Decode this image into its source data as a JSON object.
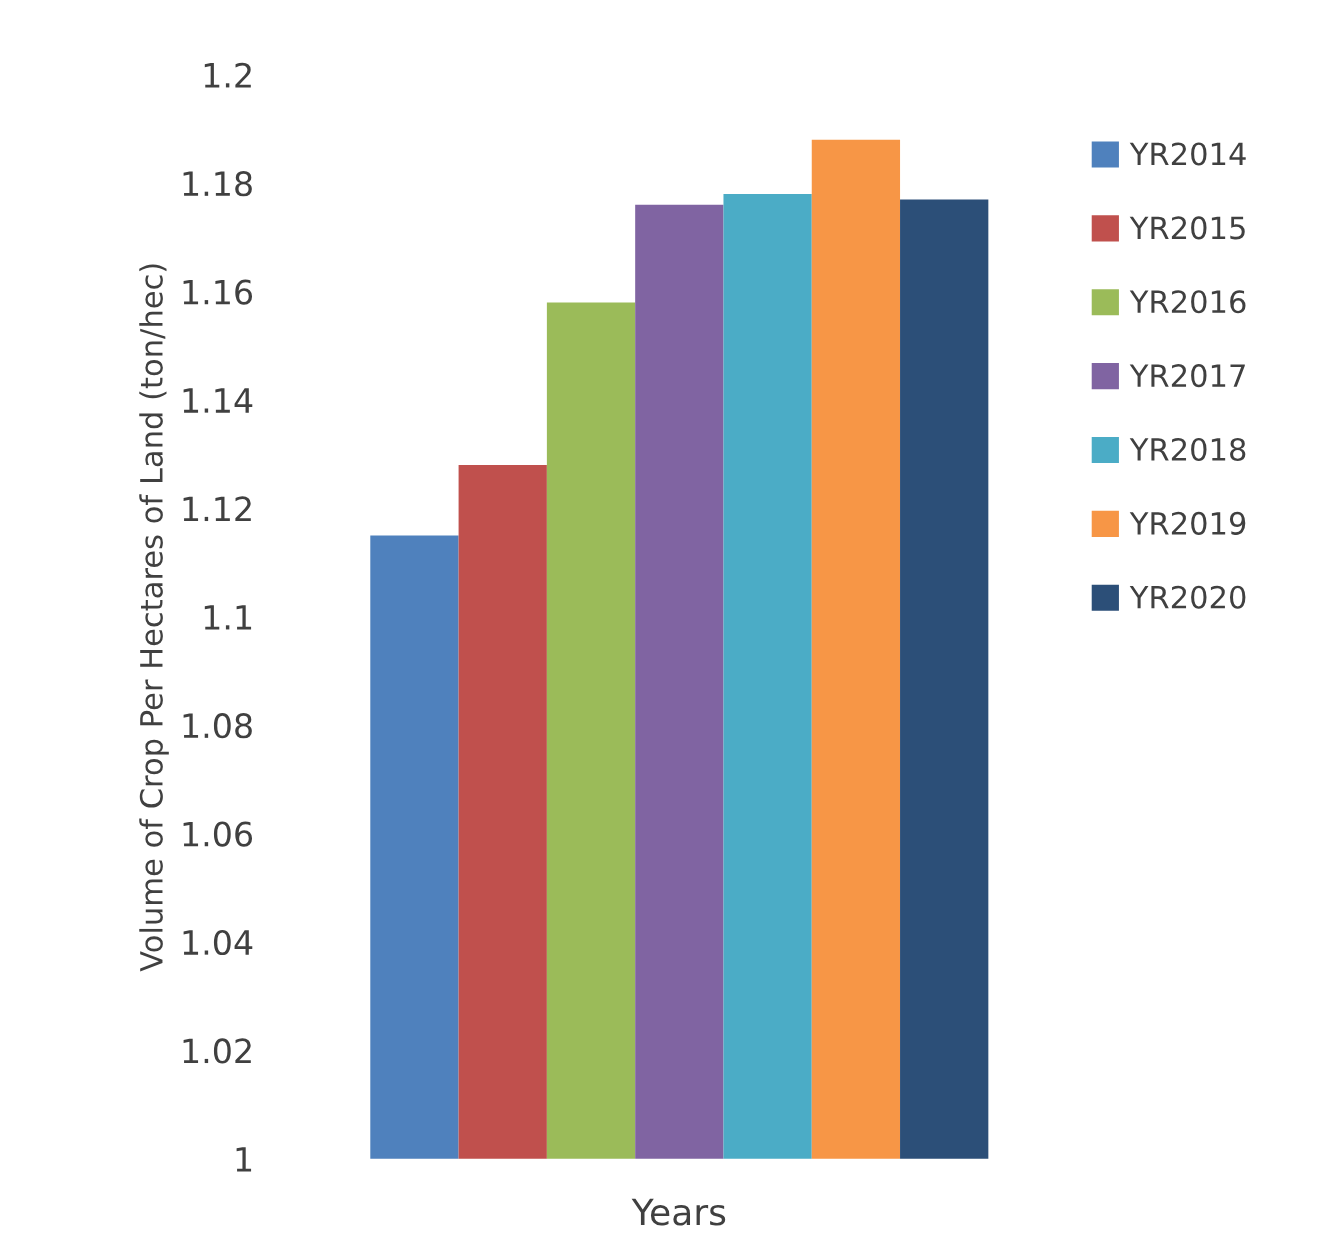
{
  "chart_data": {
    "type": "bar",
    "xlabel": "Years",
    "ylabel": "Volume of Crop Per Hectares of Land (ton/hec)",
    "categories": [
      null
    ],
    "series": [
      {
        "name": "YR2014",
        "color": "#4f81bd",
        "values": [
          1.115
        ]
      },
      {
        "name": "YR2015",
        "color": "#c0504d",
        "values": [
          1.128
        ]
      },
      {
        "name": "YR2016",
        "color": "#9bbb59",
        "values": [
          1.158
        ]
      },
      {
        "name": "YR2017",
        "color": "#8064a2",
        "values": [
          1.176
        ]
      },
      {
        "name": "YR2018",
        "color": "#4bacc6",
        "values": [
          1.178
        ]
      },
      {
        "name": "YR2019",
        "color": "#f79646",
        "values": [
          1.188
        ]
      },
      {
        "name": "YR2020",
        "color": "#2c4f78",
        "values": [
          1.177
        ]
      }
    ],
    "ylim": [
      1,
      1.2
    ],
    "yticks": [
      1,
      1.02,
      1.04,
      1.06,
      1.08,
      1.1,
      1.12,
      1.14,
      1.16,
      1.18,
      1.2
    ],
    "grid": false,
    "legend": "right"
  }
}
